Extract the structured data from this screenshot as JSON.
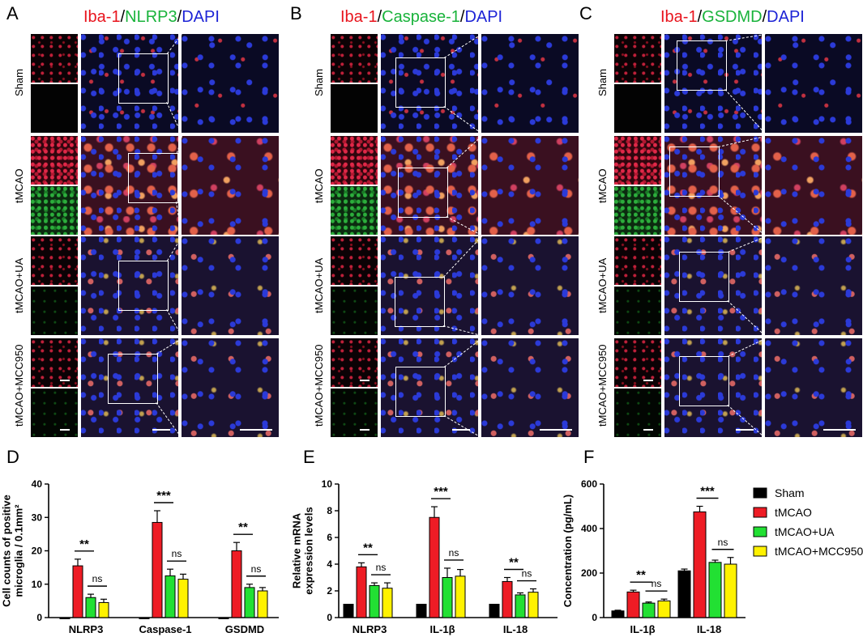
{
  "panels": {
    "A": {
      "letter": "A",
      "title": [
        {
          "text": "Iba-1",
          "color": "red"
        },
        {
          "text": "/",
          "color": "black"
        },
        {
          "text": "NLRP3",
          "color": "green"
        },
        {
          "text": "/",
          "color": "black"
        },
        {
          "text": "DAPI",
          "color": "blue"
        }
      ]
    },
    "B": {
      "letter": "B",
      "title": [
        {
          "text": "Iba-1",
          "color": "red"
        },
        {
          "text": "/",
          "color": "black"
        },
        {
          "text": "Caspase-1",
          "color": "green"
        },
        {
          "text": "/",
          "color": "black"
        },
        {
          "text": "DAPI",
          "color": "blue"
        }
      ]
    },
    "C": {
      "letter": "C",
      "title": [
        {
          "text": "Iba-1",
          "color": "red"
        },
        {
          "text": "/",
          "color": "black"
        },
        {
          "text": "GSDMD",
          "color": "green"
        },
        {
          "text": "/",
          "color": "black"
        },
        {
          "text": "DAPI",
          "color": "blue"
        }
      ]
    },
    "D": {
      "letter": "D"
    },
    "E": {
      "letter": "E"
    },
    "F": {
      "letter": "F"
    }
  },
  "rows": [
    "Sham",
    "tMCAO",
    "tMCAO+UA",
    "tMCAO+MCC950"
  ],
  "colors": {
    "Sham": "#000000",
    "tMCAO": "#ee1c25",
    "tMCAO+UA": "#22e033",
    "tMCAO+MCC950": "#fff200"
  },
  "legend": [
    "Sham",
    "tMCAO",
    "tMCAO+UA",
    "tMCAO+MCC950"
  ],
  "chart_data": [
    {
      "panel": "D",
      "type": "bar",
      "ylabel": "Cell counts of positive microglia / 0.1mm²",
      "ylim": [
        0,
        40
      ],
      "yticks": [
        "0",
        "10",
        "20",
        "30",
        "40"
      ],
      "categories": [
        "NLRP3",
        "Caspase-1",
        "GSDMD"
      ],
      "series": [
        {
          "name": "Sham",
          "values": [
            0,
            0,
            0
          ],
          "err": [
            0,
            0,
            0
          ]
        },
        {
          "name": "tMCAO",
          "values": [
            15.5,
            28.5,
            20
          ],
          "err": [
            2,
            3.5,
            2.5
          ]
        },
        {
          "name": "tMCAO+UA",
          "values": [
            6,
            12.5,
            9
          ],
          "err": [
            1,
            2,
            1
          ]
        },
        {
          "name": "tMCAO+MCC950",
          "values": [
            4.5,
            11.5,
            8
          ],
          "err": [
            1,
            1.5,
            1
          ]
        }
      ],
      "annotations": [
        [
          "**",
          "ns"
        ],
        [
          "***",
          "ns"
        ],
        [
          "**",
          "ns"
        ]
      ]
    },
    {
      "panel": "E",
      "type": "bar",
      "ylabel": "Relative mRNA expression levels",
      "ylim": [
        0,
        10
      ],
      "yticks": [
        "0",
        "2",
        "4",
        "6",
        "8",
        "10"
      ],
      "categories": [
        "NLRP3",
        "IL-1β",
        "IL-18"
      ],
      "series": [
        {
          "name": "Sham",
          "values": [
            1,
            1,
            1
          ],
          "err": [
            0,
            0,
            0
          ]
        },
        {
          "name": "tMCAO",
          "values": [
            3.8,
            7.5,
            2.7
          ],
          "err": [
            0.3,
            0.8,
            0.3
          ]
        },
        {
          "name": "tMCAO+UA",
          "values": [
            2.4,
            3,
            1.7
          ],
          "err": [
            0.2,
            0.7,
            0.15
          ]
        },
        {
          "name": "tMCAO+MCC950",
          "values": [
            2.2,
            3.1,
            1.9
          ],
          "err": [
            0.4,
            0.5,
            0.25
          ]
        }
      ],
      "annotations": [
        [
          "**",
          "ns"
        ],
        [
          "***",
          "ns"
        ],
        [
          "**",
          "ns"
        ]
      ]
    },
    {
      "panel": "F",
      "type": "bar",
      "ylabel": "Concentration (pg/mL)",
      "ylim": [
        0,
        600
      ],
      "yticks": [
        "0",
        "200",
        "400",
        "600"
      ],
      "categories": [
        "IL-1β",
        "IL-18"
      ],
      "series": [
        {
          "name": "Sham",
          "values": [
            30,
            210
          ],
          "err": [
            3,
            8
          ]
        },
        {
          "name": "tMCAO",
          "values": [
            115,
            475
          ],
          "err": [
            8,
            25
          ]
        },
        {
          "name": "tMCAO+UA",
          "values": [
            65,
            248
          ],
          "err": [
            5,
            10
          ]
        },
        {
          "name": "tMCAO+MCC950",
          "values": [
            75,
            240
          ],
          "err": [
            8,
            30
          ]
        }
      ],
      "annotations": [
        [
          "**",
          "ns"
        ],
        [
          "***",
          "ns"
        ]
      ]
    }
  ]
}
